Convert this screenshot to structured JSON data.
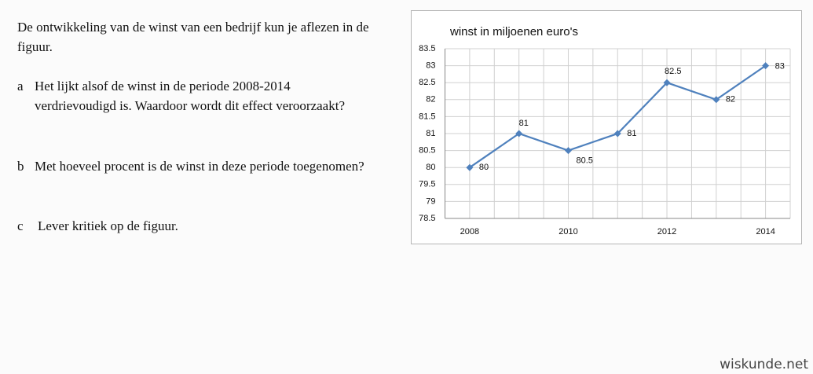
{
  "exercise": {
    "intro": "De ontwikkeling van de winst van een bedrijf kun je aflezen in de figuur.",
    "questions": [
      {
        "letter": "a",
        "text": "Het lijkt alsof de winst in de periode 2008-2014 verdrievoudigd is. Waardoor wordt dit effect veroorzaakt?"
      },
      {
        "letter": "b",
        "text": "Met hoeveel procent is de winst in deze periode toegenomen?"
      },
      {
        "letter": "c",
        "text": "Lever kritiek op de figuur."
      }
    ]
  },
  "watermark": "wiskunde.net",
  "chart_data": {
    "type": "line",
    "title": "winst in miljoenen euro's",
    "categories": [
      "2008",
      null,
      "2010",
      null,
      "2012",
      null,
      "2014"
    ],
    "series": [
      {
        "name": "winst",
        "color": "#4f81bd",
        "values": [
          80,
          81,
          80.5,
          81,
          82.5,
          82,
          83
        ]
      }
    ],
    "ylim": [
      78.5,
      83.5
    ],
    "yticks": [
      78.5,
      79,
      79.5,
      80,
      80.5,
      81,
      81.5,
      82,
      82.5,
      83,
      83.5
    ],
    "grid": true
  }
}
